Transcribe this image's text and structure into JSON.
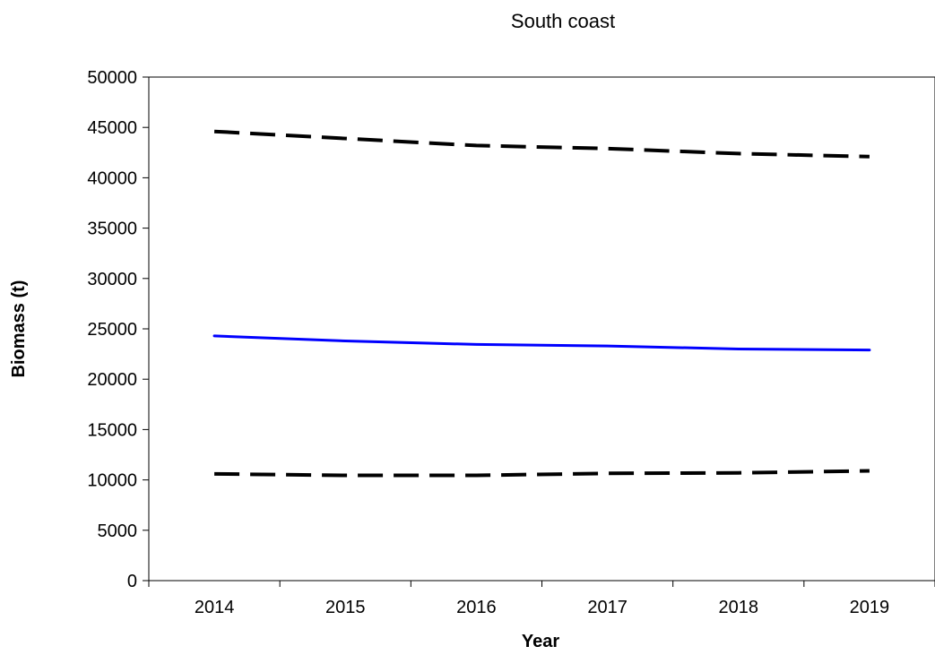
{
  "chart_data": {
    "type": "line",
    "title": "South coast",
    "xlabel": "Year",
    "ylabel": "Biomass (t)",
    "x": [
      "2014",
      "2015",
      "2016",
      "2017",
      "2018",
      "2019"
    ],
    "ylim": [
      0,
      50000
    ],
    "yticks": [
      0,
      5000,
      10000,
      15000,
      20000,
      25000,
      30000,
      35000,
      40000,
      45000,
      50000
    ],
    "grid": false,
    "series": [
      {
        "style": "solid",
        "color": "#0000ff",
        "values": [
          24300,
          23800,
          23450,
          23300,
          23000,
          22900
        ]
      },
      {
        "style": "dashed",
        "color": "#000000",
        "values": [
          44600,
          43900,
          43200,
          42900,
          42400,
          42100
        ]
      },
      {
        "style": "dashed",
        "color": "#000000",
        "values": [
          10600,
          10450,
          10450,
          10650,
          10700,
          10900
        ]
      }
    ]
  }
}
